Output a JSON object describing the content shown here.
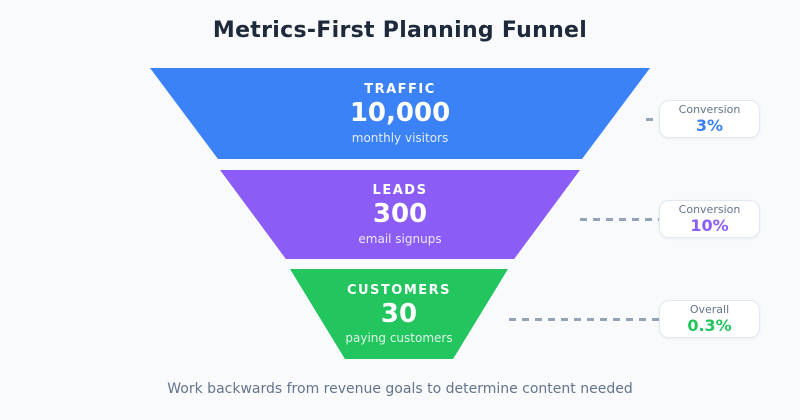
{
  "title": "Metrics-First Planning Funnel",
  "footer_note": "Work backwards from revenue goals to determine content needed",
  "colors": {
    "background": "#f8fafc",
    "title_text": "#1e293b",
    "footer_text": "#64748b",
    "connector_dash": "#94a3b8",
    "badge_background": "#ffffff",
    "badge_border": "#e2e8f0",
    "badge_label_text": "#64748b",
    "traffic_blue": "#3b82f6",
    "leads_purple": "#8b5cf6",
    "customers_green": "#22c55e"
  },
  "chart_data": {
    "type": "funnel",
    "title": "Metrics-First Planning Funnel",
    "annotation": "Work backwards from revenue goals to determine content needed",
    "stages": [
      {
        "label": "TRAFFIC",
        "value": "10,000",
        "numeric_value": 10000,
        "sublabel": "monthly visitors",
        "color": "#3b82f6",
        "badge": {
          "label": "Conversion",
          "value": "3%"
        }
      },
      {
        "label": "LEADS",
        "value": "300",
        "numeric_value": 300,
        "sublabel": "email signups",
        "color": "#8b5cf6",
        "badge": {
          "label": "Conversion",
          "value": "10%"
        }
      },
      {
        "label": "CUSTOMERS",
        "value": "30",
        "numeric_value": 30,
        "sublabel": "paying customers",
        "color": "#22c55e",
        "badge": {
          "label": "Overall",
          "value": "0.3%"
        }
      }
    ]
  }
}
